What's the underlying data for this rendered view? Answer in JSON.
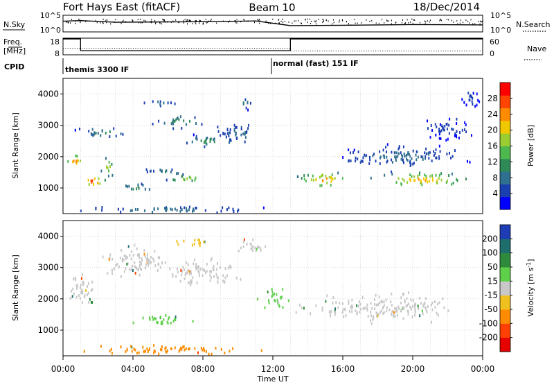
{
  "header": {
    "title": "Fort Hays East (fitACF)",
    "beam": "Beam 10",
    "date": "18/Dec/2014"
  },
  "panel_labels": {
    "nsky": "N.Sky",
    "freq": "Freq.",
    "freq_unit": "[MHz]",
    "cpid": "CPID",
    "nsearch": "N.Search",
    "nave": "Nave"
  },
  "noise_axis": {
    "top": "10^5",
    "bottom": "10^0"
  },
  "freq_axis": {
    "left_top": "18",
    "left_bottom": "8",
    "right_top": "60",
    "right_bottom": "0"
  },
  "cpid_segments": [
    {
      "label": "themis 3300 IF",
      "start_hour": 0
    },
    {
      "label": "normal (fast) 151 IF",
      "start_hour": 12
    }
  ],
  "x_axis": {
    "title": "Time UT",
    "ticks": [
      "00:00",
      "04:00",
      "08:00",
      "12:00",
      "16:00",
      "20:00",
      "00:00"
    ]
  },
  "panels": [
    {
      "ylabel": "Slant Range [km]",
      "yticks": [
        "1000",
        "2000",
        "3000",
        "4000"
      ],
      "colorbar": {
        "title": "Power [dB]",
        "ticks": [
          "4",
          "8",
          "12",
          "16",
          "20",
          "24",
          "28"
        ],
        "colors": [
          "#0000ff",
          "#1a3fb0",
          "#2f6f8f",
          "#2e8b57",
          "#4db84d",
          "#9acd32",
          "#f0c800",
          "#ff8c00",
          "#ff4500",
          "#ff0000"
        ]
      }
    },
    {
      "ylabel": "Slant Range [km]",
      "yticks": [
        "1000",
        "2000",
        "3000",
        "4000"
      ],
      "colorbar": {
        "title": "Velocity [m s",
        "title_sup": "-1",
        "title_end": "]",
        "ticks": [
          "200",
          "100",
          "50",
          "15",
          "-15",
          "-50",
          "-100",
          "-200"
        ],
        "colors": [
          "#1e3cb4",
          "#1e6e6e",
          "#2e8b3c",
          "#5fd04a",
          "#c8c8c8",
          "#f0c020",
          "#ff8c00",
          "#ff4000",
          "#e60000"
        ]
      }
    }
  ],
  "chart_data": [
    {
      "type": "line",
      "title": "N.Sky",
      "x": [
        0,
        1,
        3,
        6,
        9,
        11,
        12,
        13,
        16,
        20,
        24
      ],
      "series": [
        {
          "name": "N.Sky",
          "values": [
            3.2,
            3.4,
            2.9,
            3.0,
            3.1,
            3.3,
            2.6,
            1.9,
            2.0,
            2.2,
            2.1
          ]
        }
      ],
      "ylim": [
        0,
        5
      ]
    },
    {
      "type": "line",
      "title": "Freq. [MHz]",
      "x": [
        0,
        1,
        1,
        13,
        13,
        24
      ],
      "series": [
        {
          "name": "Freq.",
          "values": [
            17.5,
            17.5,
            10.5,
            10.5,
            17.5,
            17.5
          ]
        }
      ],
      "ylim": [
        8,
        18
      ]
    },
    {
      "type": "heatmap",
      "title": "Power [dB]",
      "xlabel": "Time UT",
      "ylabel": "Slant Range [km]",
      "xlim": [
        0,
        24
      ],
      "ylim": [
        180,
        4500
      ],
      "zlim": [
        0,
        30
      ],
      "patches": [
        {
          "t": [
            0,
            1.3
          ],
          "r": [
            1600,
            2200
          ],
          "peak": 24
        },
        {
          "t": [
            0.8,
            2.6
          ],
          "r": [
            1000,
            1500
          ],
          "peak": 28
        },
        {
          "t": [
            2.0,
            3.0
          ],
          "r": [
            1300,
            2100
          ],
          "peak": 18
        },
        {
          "t": [
            0.2,
            4.2
          ],
          "r": [
            2600,
            3000
          ],
          "peak": 10
        },
        {
          "t": [
            4.2,
            6.6
          ],
          "r": [
            3600,
            3900
          ],
          "peak": 8
        },
        {
          "t": [
            5.0,
            8.5
          ],
          "r": [
            2900,
            3400
          ],
          "peak": 12
        },
        {
          "t": [
            6.5,
            10.0
          ],
          "r": [
            2300,
            2800
          ],
          "peak": 12
        },
        {
          "t": [
            4.0,
            7.8
          ],
          "r": [
            1400,
            1700
          ],
          "peak": 10
        },
        {
          "t": [
            5.6,
            8.6
          ],
          "r": [
            1200,
            1500
          ],
          "peak": 18
        },
        {
          "t": [
            2.6,
            6.0
          ],
          "r": [
            900,
            1200
          ],
          "peak": 12
        },
        {
          "t": [
            9.8,
            11.0
          ],
          "r": [
            3500,
            4000
          ],
          "peak": 9
        },
        {
          "t": [
            8.3,
            11.8
          ],
          "r": [
            2400,
            3200
          ],
          "peak": 8
        },
        {
          "t": [
            13.0,
            17.0
          ],
          "r": [
            1000,
            1600
          ],
          "peak": 24
        },
        {
          "t": [
            17.0,
            24.0
          ],
          "r": [
            1000,
            1600
          ],
          "peak": 22
        },
        {
          "t": [
            14.5,
            24.0
          ],
          "r": [
            1600,
            2500
          ],
          "peak": 8
        },
        {
          "t": [
            20.0,
            24.0
          ],
          "r": [
            2500,
            3400
          ],
          "peak": 5
        },
        {
          "t": [
            22.5,
            24.0
          ],
          "r": [
            3500,
            4400
          ],
          "peak": 5
        },
        {
          "t": [
            0.0,
            12.5
          ],
          "r": [
            200,
            500
          ],
          "peak": 9
        }
      ]
    },
    {
      "type": "heatmap",
      "title": "Velocity [m s-1]",
      "xlabel": "Time UT",
      "ylabel": "Slant Range [km]",
      "xlim": [
        0,
        24
      ],
      "ylim": [
        180,
        4500
      ],
      "zlim": [
        -250,
        250
      ],
      "patches": [
        {
          "t": [
            0.0,
            2.0
          ],
          "r": [
            1600,
            3000
          ],
          "v": 0
        },
        {
          "t": [
            2.0,
            6.5
          ],
          "r": [
            2500,
            3900
          ],
          "v": 0
        },
        {
          "t": [
            5.5,
            10.5
          ],
          "r": [
            2300,
            3500
          ],
          "v": 0
        },
        {
          "t": [
            9.5,
            11.8
          ],
          "r": [
            3400,
            4100
          ],
          "v": 0
        },
        {
          "t": [
            1.2,
            2.0
          ],
          "r": [
            1800,
            2100
          ],
          "v": 70
        },
        {
          "t": [
            3.6,
            7.8
          ],
          "r": [
            1100,
            1600
          ],
          "v": 40
        },
        {
          "t": [
            11.0,
            13.2
          ],
          "r": [
            1600,
            2400
          ],
          "v": 20
        },
        {
          "t": [
            12.5,
            24.0
          ],
          "r": [
            1200,
            2300
          ],
          "v": 0
        },
        {
          "t": [
            0.0,
            12.5
          ],
          "r": [
            200,
            600
          ],
          "v": -60
        },
        {
          "t": [
            6.0,
            9.0
          ],
          "r": [
            3700,
            4000
          ],
          "v": -40
        }
      ]
    }
  ]
}
